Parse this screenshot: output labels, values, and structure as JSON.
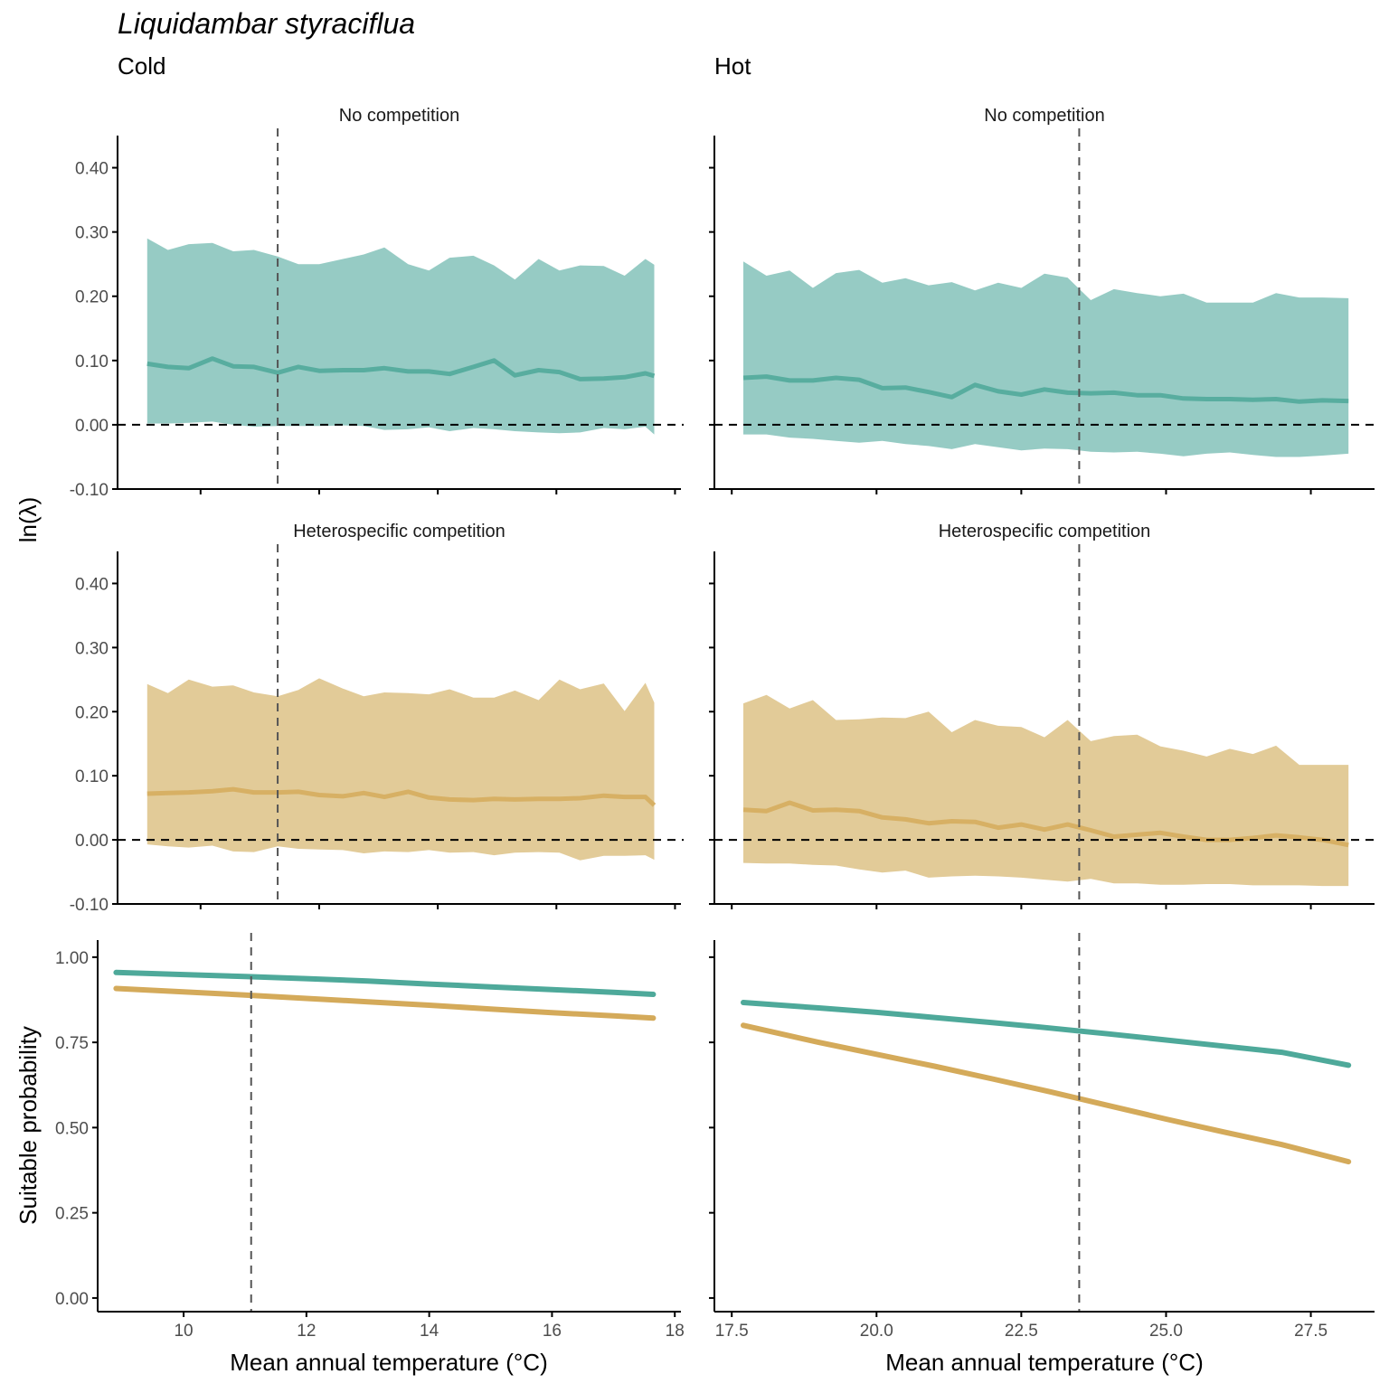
{
  "species": "Liquidambar styraciflua",
  "columns": {
    "cold": "Cold",
    "hot": "Hot"
  },
  "rows": {
    "top": "No competition",
    "middle": "Heterospecific competition"
  },
  "y_labels": {
    "lambda": "ln(λ)",
    "prob": "Suitable probability"
  },
  "x_label": "Mean annual temperature (°C)",
  "colors": {
    "no_competition": "#4ea99a",
    "no_competition_band": "#96cbc4",
    "heterospecific": "#d4aa5a",
    "heterospecific_band": "#e2cb98",
    "reference_line": "#000000"
  },
  "chart_data": [
    {
      "type": "area",
      "panel": "cold-no-competition",
      "strip": "No competition",
      "ylabel": "ln(λ)",
      "ylim": [
        -0.1,
        0.45
      ],
      "yticks": [
        -0.1,
        0.0,
        0.1,
        0.2,
        0.3,
        0.4
      ],
      "xlim": [
        8.6,
        18.1
      ],
      "xticks": [
        10,
        12,
        14,
        16,
        18
      ],
      "reference_x": 11.3,
      "reference_y": 0.0,
      "x": [
        9.1,
        9.45,
        9.8,
        10.2,
        10.55,
        10.9,
        11.3,
        11.65,
        12.0,
        12.4,
        12.75,
        13.1,
        13.5,
        13.85,
        14.2,
        14.6,
        14.95,
        15.3,
        15.7,
        16.05,
        16.4,
        16.8,
        17.15,
        17.5,
        17.65
      ],
      "series": [
        {
          "name": "No competition",
          "role": "mean",
          "values": [
            0.095,
            0.09,
            0.088,
            0.103,
            0.091,
            0.09,
            0.081,
            0.09,
            0.084,
            0.085,
            0.085,
            0.088,
            0.083,
            0.083,
            0.079,
            0.09,
            0.1,
            0.077,
            0.085,
            0.082,
            0.071,
            0.072,
            0.074,
            0.08,
            0.076
          ]
        },
        {
          "name": "No competition",
          "role": "upper",
          "values": [
            0.29,
            0.272,
            0.281,
            0.283,
            0.27,
            0.272,
            0.262,
            0.25,
            0.25,
            0.258,
            0.265,
            0.276,
            0.25,
            0.24,
            0.26,
            0.263,
            0.248,
            0.226,
            0.258,
            0.24,
            0.248,
            0.247,
            0.232,
            0.258,
            0.249
          ]
        },
        {
          "name": "No competition",
          "role": "lower",
          "values": [
            0.002,
            0.002,
            0.003,
            0.005,
            0.0,
            -0.003,
            -0.002,
            -0.002,
            -0.002,
            -0.001,
            -0.002,
            -0.008,
            -0.007,
            -0.004,
            -0.01,
            -0.005,
            -0.007,
            -0.01,
            -0.012,
            -0.013,
            -0.012,
            -0.005,
            -0.007,
            -0.003,
            -0.015
          ]
        }
      ]
    },
    {
      "type": "area",
      "panel": "hot-no-competition",
      "strip": "No competition",
      "ylabel": "ln(λ)",
      "ylim": [
        -0.1,
        0.45
      ],
      "yticks": [
        -0.1,
        0.0,
        0.1,
        0.2,
        0.3,
        0.4
      ],
      "xlim": [
        17.2,
        28.6
      ],
      "xticks": [
        17.5,
        20.0,
        22.5,
        25.0,
        27.5
      ],
      "reference_x": 23.5,
      "reference_y": 0.0,
      "x": [
        17.7,
        18.1,
        18.5,
        18.9,
        19.3,
        19.7,
        20.1,
        20.5,
        20.9,
        21.3,
        21.7,
        22.1,
        22.5,
        22.9,
        23.3,
        23.7,
        24.1,
        24.5,
        24.9,
        25.3,
        25.7,
        26.1,
        26.5,
        26.9,
        27.3,
        27.7,
        28.15
      ],
      "series": [
        {
          "name": "No competition",
          "role": "mean",
          "values": [
            0.073,
            0.075,
            0.069,
            0.069,
            0.073,
            0.07,
            0.057,
            0.058,
            0.051,
            0.043,
            0.062,
            0.052,
            0.047,
            0.055,
            0.05,
            0.049,
            0.05,
            0.046,
            0.046,
            0.041,
            0.04,
            0.04,
            0.039,
            0.04,
            0.036,
            0.038,
            0.037
          ]
        },
        {
          "name": "No competition",
          "role": "upper",
          "values": [
            0.254,
            0.232,
            0.24,
            0.213,
            0.236,
            0.241,
            0.221,
            0.228,
            0.217,
            0.222,
            0.209,
            0.221,
            0.213,
            0.235,
            0.229,
            0.194,
            0.211,
            0.205,
            0.2,
            0.204,
            0.19,
            0.19,
            0.19,
            0.205,
            0.198,
            0.198,
            0.197
          ]
        },
        {
          "name": "No competition",
          "role": "lower",
          "values": [
            -0.015,
            -0.015,
            -0.02,
            -0.022,
            -0.025,
            -0.028,
            -0.025,
            -0.03,
            -0.033,
            -0.038,
            -0.03,
            -0.035,
            -0.04,
            -0.037,
            -0.038,
            -0.042,
            -0.043,
            -0.042,
            -0.045,
            -0.049,
            -0.045,
            -0.043,
            -0.047,
            -0.05,
            -0.05,
            -0.048,
            -0.045
          ]
        }
      ]
    },
    {
      "type": "area",
      "panel": "cold-heterospecific",
      "strip": "Heterospecific competition",
      "ylabel": "ln(λ)",
      "ylim": [
        -0.1,
        0.45
      ],
      "yticks": [
        -0.1,
        0.0,
        0.1,
        0.2,
        0.3,
        0.4
      ],
      "xlim": [
        8.6,
        18.1
      ],
      "xticks": [
        10,
        12,
        14,
        16,
        18
      ],
      "reference_x": 11.3,
      "reference_y": 0.0,
      "x": [
        9.1,
        9.45,
        9.8,
        10.2,
        10.55,
        10.9,
        11.3,
        11.65,
        12.0,
        12.4,
        12.75,
        13.1,
        13.5,
        13.85,
        14.2,
        14.6,
        14.95,
        15.3,
        15.7,
        16.05,
        16.4,
        16.8,
        17.15,
        17.5,
        17.65
      ],
      "series": [
        {
          "name": "Heterospecific competition",
          "role": "mean",
          "values": [
            0.072,
            0.073,
            0.074,
            0.076,
            0.079,
            0.074,
            0.074,
            0.075,
            0.07,
            0.068,
            0.073,
            0.067,
            0.075,
            0.066,
            0.063,
            0.062,
            0.064,
            0.063,
            0.064,
            0.064,
            0.065,
            0.069,
            0.067,
            0.067,
            0.054
          ]
        },
        {
          "name": "Heterospecific competition",
          "role": "upper",
          "values": [
            0.243,
            0.229,
            0.25,
            0.239,
            0.241,
            0.23,
            0.224,
            0.234,
            0.252,
            0.236,
            0.224,
            0.23,
            0.229,
            0.227,
            0.235,
            0.222,
            0.222,
            0.233,
            0.218,
            0.25,
            0.235,
            0.244,
            0.201,
            0.245,
            0.214
          ]
        },
        {
          "name": "Heterospecific competition",
          "role": "lower",
          "values": [
            -0.007,
            -0.01,
            -0.012,
            -0.009,
            -0.018,
            -0.019,
            -0.01,
            -0.014,
            -0.015,
            -0.016,
            -0.021,
            -0.018,
            -0.019,
            -0.016,
            -0.02,
            -0.019,
            -0.024,
            -0.02,
            -0.019,
            -0.02,
            -0.032,
            -0.025,
            -0.025,
            -0.024,
            -0.031
          ]
        }
      ]
    },
    {
      "type": "area",
      "panel": "hot-heterospecific",
      "strip": "Heterospecific competition",
      "ylabel": "ln(λ)",
      "ylim": [
        -0.1,
        0.45
      ],
      "yticks": [
        -0.1,
        0.0,
        0.1,
        0.2,
        0.3,
        0.4
      ],
      "xlim": [
        17.2,
        28.6
      ],
      "xticks": [
        17.5,
        20.0,
        22.5,
        25.0,
        27.5
      ],
      "reference_x": 23.5,
      "reference_y": 0.0,
      "x": [
        17.7,
        18.1,
        18.5,
        18.9,
        19.3,
        19.7,
        20.1,
        20.5,
        20.9,
        21.3,
        21.7,
        22.1,
        22.5,
        22.9,
        23.3,
        23.7,
        24.1,
        24.5,
        24.9,
        25.3,
        25.7,
        26.1,
        26.5,
        26.9,
        27.3,
        27.7,
        28.15
      ],
      "series": [
        {
          "name": "Heterospecific competition",
          "role": "mean",
          "values": [
            0.047,
            0.045,
            0.058,
            0.046,
            0.047,
            0.045,
            0.035,
            0.032,
            0.026,
            0.029,
            0.028,
            0.019,
            0.024,
            0.016,
            0.024,
            0.015,
            0.005,
            0.008,
            0.011,
            0.005,
            0.0,
            0.0,
            0.003,
            0.007,
            0.004,
            0.0,
            -0.008
          ]
        },
        {
          "name": "Heterospecific competition",
          "role": "upper",
          "values": [
            0.213,
            0.226,
            0.205,
            0.218,
            0.187,
            0.188,
            0.191,
            0.19,
            0.2,
            0.168,
            0.187,
            0.178,
            0.176,
            0.16,
            0.187,
            0.154,
            0.162,
            0.164,
            0.146,
            0.139,
            0.13,
            0.142,
            0.134,
            0.147,
            0.117,
            0.117,
            0.117
          ]
        },
        {
          "name": "Heterospecific competition",
          "role": "lower",
          "values": [
            -0.036,
            -0.037,
            -0.037,
            -0.039,
            -0.04,
            -0.046,
            -0.051,
            -0.048,
            -0.059,
            -0.057,
            -0.056,
            -0.057,
            -0.059,
            -0.062,
            -0.065,
            -0.061,
            -0.068,
            -0.068,
            -0.07,
            -0.07,
            -0.069,
            -0.069,
            -0.071,
            -0.071,
            -0.071,
            -0.072,
            -0.072
          ]
        }
      ]
    },
    {
      "type": "line",
      "panel": "cold-probability",
      "ylabel": "Suitable probability",
      "xlabel": "Mean annual temperature (°C)",
      "ylim": [
        -0.04,
        1.05
      ],
      "yticks": [
        0.0,
        0.25,
        0.5,
        0.75,
        1.0
      ],
      "xlim": [
        8.6,
        18.1
      ],
      "xticks": [
        10,
        12,
        14,
        16,
        18
      ],
      "reference_x": 11.1,
      "x": [
        8.9,
        10.0,
        11.0,
        12.0,
        13.0,
        14.0,
        15.0,
        16.0,
        17.0,
        17.65
      ],
      "series": [
        {
          "name": "No competition",
          "values": [
            0.955,
            0.949,
            0.943,
            0.937,
            0.93,
            0.921,
            0.913,
            0.905,
            0.897,
            0.891
          ]
        },
        {
          "name": "Heterospecific competition",
          "values": [
            0.908,
            0.898,
            0.889,
            0.879,
            0.869,
            0.859,
            0.848,
            0.837,
            0.828,
            0.821
          ]
        }
      ]
    },
    {
      "type": "line",
      "panel": "hot-probability",
      "ylabel": "Suitable probability",
      "xlabel": "Mean annual temperature (°C)",
      "ylim": [
        -0.04,
        1.05
      ],
      "yticks": [
        0.0,
        0.25,
        0.5,
        0.75,
        1.0
      ],
      "xlim": [
        17.2,
        28.6
      ],
      "xticks": [
        17.5,
        20.0,
        22.5,
        25.0,
        27.5
      ],
      "reference_x": 23.5,
      "x": [
        17.7,
        19.0,
        20.0,
        21.0,
        22.0,
        23.0,
        24.0,
        25.0,
        26.0,
        27.0,
        28.15
      ],
      "series": [
        {
          "name": "No competition",
          "values": [
            0.867,
            0.851,
            0.838,
            0.823,
            0.808,
            0.792,
            0.775,
            0.757,
            0.739,
            0.721,
            0.683
          ]
        },
        {
          "name": "Heterospecific competition",
          "values": [
            0.8,
            0.75,
            0.715,
            0.68,
            0.643,
            0.605,
            0.565,
            0.525,
            0.487,
            0.45,
            0.4
          ]
        }
      ]
    }
  ]
}
